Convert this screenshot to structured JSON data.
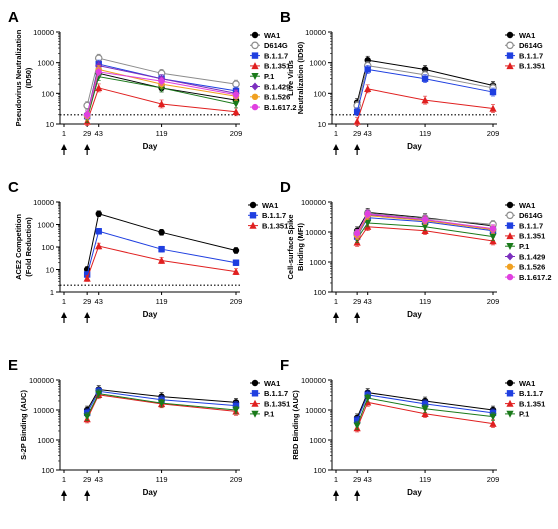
{
  "colors": {
    "WA1": "#000000",
    "D614G": "#8c8c8c",
    "B.1.1.7": "#1f3fe0",
    "B.1.351": "#e02020",
    "P.1": "#1a7a1a",
    "B.1.429": "#7b2fbe",
    "B.1.526": "#f0a020",
    "B.1.617.2": "#e040e0",
    "axis": "#000000",
    "dotted": "#000000"
  },
  "chart_data": [
    {
      "panel": "A",
      "type": "line",
      "ylabel": "Pseudovirus Neutralization (ID50)",
      "xlabel": "Day",
      "y_log": true,
      "ylim": [
        10,
        10000
      ],
      "yticks": [
        10,
        100,
        1000,
        10000
      ],
      "yticklabels": [
        "10",
        "100",
        "1000",
        "10000"
      ],
      "x_ticks": [
        1,
        29,
        43,
        119,
        209
      ],
      "x_ticklabels": [
        "1",
        "29",
        "43",
        "119",
        "209"
      ],
      "dose_arrows": [
        1,
        29
      ],
      "threshold": 20,
      "series": [
        {
          "name": "WA1",
          "x": [
            29,
            43,
            119,
            209
          ],
          "y": [
            20,
            450,
            150,
            60
          ],
          "marker": "circle"
        },
        {
          "name": "D614G",
          "x": [
            29,
            43,
            119,
            209
          ],
          "y": [
            40,
            1400,
            450,
            200
          ],
          "marker": "circle-open"
        },
        {
          "name": "B.1.1.7",
          "x": [
            29,
            43,
            119,
            209
          ],
          "y": [
            18,
            900,
            300,
            120
          ],
          "marker": "square"
        },
        {
          "name": "B.1.351",
          "x": [
            29,
            43,
            119,
            209
          ],
          "y": [
            12,
            150,
            45,
            25
          ],
          "marker": "triangle-up"
        },
        {
          "name": "P.1",
          "x": [
            29,
            43,
            119,
            209
          ],
          "y": [
            15,
            350,
            150,
            45
          ],
          "marker": "triangle-down"
        },
        {
          "name": "B.1.429",
          "x": [
            29,
            43,
            119,
            209
          ],
          "y": [
            20,
            800,
            300,
            100
          ],
          "marker": "diamond"
        },
        {
          "name": "B.1.526",
          "x": [
            29,
            43,
            119,
            209
          ],
          "y": [
            18,
            600,
            200,
            80
          ],
          "marker": "circle"
        },
        {
          "name": "B.1.617.2",
          "x": [
            29,
            43,
            119,
            209
          ],
          "y": [
            20,
            500,
            250,
            90
          ],
          "marker": "circle"
        }
      ]
    },
    {
      "panel": "B",
      "type": "line",
      "ylabel": "Live Virus Neutralization (ID50)",
      "xlabel": "Day",
      "y_log": true,
      "ylim": [
        10,
        10000
      ],
      "yticks": [
        10,
        100,
        1000,
        10000
      ],
      "yticklabels": [
        "10",
        "100",
        "1000",
        "10000"
      ],
      "x_ticks": [
        1,
        29,
        43,
        119,
        209
      ],
      "x_ticklabels": [
        "1",
        "29",
        "43",
        "119",
        "209"
      ],
      "dose_arrows": [
        1,
        29
      ],
      "threshold": 20,
      "series": [
        {
          "name": "WA1",
          "x": [
            29,
            43,
            119,
            209
          ],
          "y": [
            50,
            1200,
            600,
            180
          ],
          "marker": "circle"
        },
        {
          "name": "D614G",
          "x": [
            29,
            43,
            119,
            209
          ],
          "y": [
            40,
            800,
            400,
            150
          ],
          "marker": "circle-open"
        },
        {
          "name": "B.1.1.7",
          "x": [
            29,
            43,
            119,
            209
          ],
          "y": [
            25,
            600,
            300,
            110
          ],
          "marker": "square"
        },
        {
          "name": "B.1.351",
          "x": [
            29,
            43,
            119,
            209
          ],
          "y": [
            12,
            140,
            60,
            32
          ],
          "marker": "triangle-up"
        }
      ]
    },
    {
      "panel": "C",
      "type": "line",
      "ylabel": "ACE2 Competition (Fold Reduction)",
      "xlabel": "Day",
      "y_log": true,
      "ylim": [
        1,
        10000
      ],
      "yticks": [
        1,
        10,
        100,
        1000,
        10000
      ],
      "yticklabels": [
        "1",
        "10",
        "100",
        "1000",
        "10000"
      ],
      "x_ticks": [
        1,
        29,
        43,
        119,
        209
      ],
      "x_ticklabels": [
        "1",
        "29",
        "43",
        "119",
        "209"
      ],
      "dose_arrows": [
        1,
        29
      ],
      "threshold": 2,
      "series": [
        {
          "name": "WA1",
          "x": [
            29,
            43,
            119,
            209
          ],
          "y": [
            10,
            3000,
            450,
            70
          ],
          "marker": "circle"
        },
        {
          "name": "B.1.1.7",
          "x": [
            29,
            43,
            119,
            209
          ],
          "y": [
            6,
            500,
            80,
            20
          ],
          "marker": "square"
        },
        {
          "name": "B.1.351",
          "x": [
            29,
            43,
            119,
            209
          ],
          "y": [
            4,
            110,
            25,
            8
          ],
          "marker": "triangle-up"
        }
      ]
    },
    {
      "panel": "D",
      "type": "line",
      "ylabel": "Cell-surface Spike Binding (MFI)",
      "xlabel": "Day",
      "y_log": true,
      "ylim": [
        100,
        100000
      ],
      "yticks": [
        100,
        1000,
        10000,
        100000
      ],
      "yticklabels": [
        "100",
        "1000",
        "10000",
        "100000"
      ],
      "x_ticks": [
        1,
        29,
        43,
        119,
        209
      ],
      "x_ticklabels": [
        "1",
        "29",
        "43",
        "119",
        "209"
      ],
      "dose_arrows": [
        1,
        29
      ],
      "series": [
        {
          "name": "WA1",
          "x": [
            29,
            43,
            119,
            209
          ],
          "y": [
            11000,
            45000,
            30000,
            16000
          ],
          "marker": "circle"
        },
        {
          "name": "D614G",
          "x": [
            29,
            43,
            119,
            209
          ],
          "y": [
            9000,
            42000,
            28000,
            18000
          ],
          "marker": "circle-open"
        },
        {
          "name": "B.1.1.7",
          "x": [
            29,
            43,
            119,
            209
          ],
          "y": [
            7000,
            30000,
            22000,
            11000
          ],
          "marker": "square"
        },
        {
          "name": "B.1.351",
          "x": [
            29,
            43,
            119,
            209
          ],
          "y": [
            4500,
            15000,
            11000,
            5000
          ],
          "marker": "triangle-up"
        },
        {
          "name": "P.1",
          "x": [
            29,
            43,
            119,
            209
          ],
          "y": [
            6000,
            20000,
            15000,
            7000
          ],
          "marker": "triangle-down"
        },
        {
          "name": "B.1.429",
          "x": [
            29,
            43,
            119,
            209
          ],
          "y": [
            8000,
            38000,
            25000,
            12000
          ],
          "marker": "diamond"
        },
        {
          "name": "B.1.526",
          "x": [
            29,
            43,
            119,
            209
          ],
          "y": [
            7500,
            35000,
            24000,
            12000
          ],
          "marker": "circle"
        },
        {
          "name": "B.1.617.2",
          "x": [
            29,
            43,
            119,
            209
          ],
          "y": [
            9000,
            40000,
            26000,
            13000
          ],
          "marker": "circle"
        }
      ]
    },
    {
      "panel": "E",
      "type": "line",
      "ylabel": "S-2P Binding (AUC)",
      "xlabel": "Day",
      "y_log": true,
      "ylim": [
        100,
        100000
      ],
      "yticks": [
        100,
        1000,
        10000,
        100000
      ],
      "yticklabels": [
        "100",
        "1000",
        "10000",
        "100000"
      ],
      "x_ticks": [
        1,
        29,
        43,
        119,
        209
      ],
      "x_ticklabels": [
        "1",
        "29",
        "43",
        "119",
        "209"
      ],
      "dose_arrows": [
        1,
        29
      ],
      "series": [
        {
          "name": "WA1",
          "x": [
            29,
            43,
            119,
            209
          ],
          "y": [
            10000,
            48000,
            28000,
            18000
          ],
          "marker": "circle"
        },
        {
          "name": "B.1.1.7",
          "x": [
            29,
            43,
            119,
            209
          ],
          "y": [
            8000,
            42000,
            22000,
            14000
          ],
          "marker": "square"
        },
        {
          "name": "B.1.351",
          "x": [
            29,
            43,
            119,
            209
          ],
          "y": [
            5000,
            32000,
            16000,
            9000
          ],
          "marker": "triangle-up"
        },
        {
          "name": "P.1",
          "x": [
            29,
            43,
            119,
            209
          ],
          "y": [
            6000,
            35000,
            17000,
            10000
          ],
          "marker": "triangle-down"
        }
      ]
    },
    {
      "panel": "F",
      "type": "line",
      "ylabel": "RBD Binding (AUC)",
      "xlabel": "Day",
      "y_log": true,
      "ylim": [
        100,
        100000
      ],
      "yticks": [
        100,
        1000,
        10000,
        100000
      ],
      "yticklabels": [
        "100",
        "1000",
        "10000",
        "100000"
      ],
      "x_ticks": [
        1,
        29,
        43,
        119,
        209
      ],
      "x_ticklabels": [
        "1",
        "29",
        "43",
        "119",
        "209"
      ],
      "dose_arrows": [
        1,
        29
      ],
      "series": [
        {
          "name": "WA1",
          "x": [
            29,
            43,
            119,
            209
          ],
          "y": [
            5500,
            38000,
            20000,
            10000
          ],
          "marker": "circle"
        },
        {
          "name": "B.1.1.7",
          "x": [
            29,
            43,
            119,
            209
          ],
          "y": [
            4500,
            32000,
            16000,
            8000
          ],
          "marker": "square"
        },
        {
          "name": "B.1.351",
          "x": [
            29,
            43,
            119,
            209
          ],
          "y": [
            2500,
            18000,
            7500,
            3500
          ],
          "marker": "triangle-up"
        },
        {
          "name": "P.1",
          "x": [
            29,
            43,
            119,
            209
          ],
          "y": [
            3000,
            25000,
            11000,
            6000
          ],
          "marker": "triangle-down"
        }
      ]
    }
  ]
}
